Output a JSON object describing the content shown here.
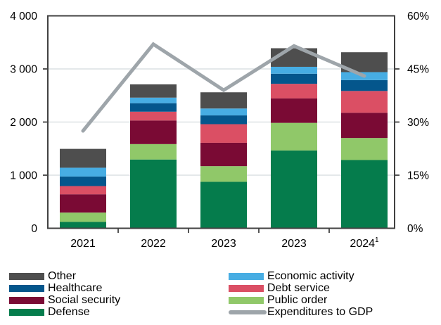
{
  "chart_data": {
    "type": "bar",
    "subtype": "stacked-bars-with-line-overlay",
    "title": "",
    "categories": [
      "2021",
      "2022",
      "2023",
      "2023",
      "2024"
    ],
    "x_footnote_marker": {
      "category_index": 4,
      "text": "1"
    },
    "left_axis": {
      "tick_labels": [
        "4 000",
        "3 000",
        "2 000",
        "1 000",
        "0"
      ],
      "tick_values": [
        4000,
        3000,
        2000,
        1000,
        0
      ],
      "min": 0,
      "max": 4000
    },
    "right_axis": {
      "tick_labels": [
        "60%",
        "45%",
        "30%",
        "15%",
        "0%"
      ],
      "tick_values": [
        60,
        45,
        30,
        15,
        0
      ],
      "min": 0,
      "max": 60
    },
    "gridline_values": [
      1000,
      2000,
      3000
    ],
    "right_tick_values": [
      15,
      30,
      45
    ],
    "series": [
      {
        "name": "Defense",
        "color": "#057C4C",
        "values": [
          120,
          1295,
          875,
          1465,
          1285
        ]
      },
      {
        "name": "Public order",
        "color": "#90C869",
        "values": [
          175,
          290,
          295,
          520,
          415
        ]
      },
      {
        "name": "Social security",
        "color": "#7A0A34",
        "values": [
          345,
          445,
          440,
          460,
          475
        ]
      },
      {
        "name": "Debt service",
        "color": "#DB4F64",
        "values": [
          155,
          165,
          350,
          275,
          410
        ]
      },
      {
        "name": "Healthcare",
        "color": "#04568C",
        "values": [
          180,
          160,
          165,
          190,
          205
        ]
      },
      {
        "name": "Economic activity",
        "color": "#47ADE3",
        "values": [
          165,
          105,
          130,
          130,
          150
        ]
      },
      {
        "name": "Other",
        "color": "#4E4E4E",
        "values": [
          355,
          250,
          305,
          350,
          375
        ]
      }
    ],
    "line_series": {
      "name": "Expenditures to GDP",
      "color": "#9EA5AA",
      "axis": "right",
      "values": [
        27.5,
        52,
        39,
        51.5,
        43
      ]
    },
    "legend_position": "bottom"
  },
  "legend": {
    "columns": [
      {
        "items": [
          {
            "label": "Other",
            "color": "#4E4E4E",
            "type": "box"
          },
          {
            "label": "Healthcare",
            "color": "#04568C",
            "type": "box"
          },
          {
            "label": "Social security",
            "color": "#7A0A34",
            "type": "box"
          },
          {
            "label": "Defense",
            "color": "#057C4C",
            "type": "box"
          }
        ]
      },
      {
        "items": [
          {
            "label": "Economic activity",
            "color": "#47ADE3",
            "type": "box"
          },
          {
            "label": "Debt service",
            "color": "#DB4F64",
            "type": "box"
          },
          {
            "label": "Public order",
            "color": "#90C869",
            "type": "box"
          },
          {
            "label": "Expenditures to GDP",
            "color": "#9EA5AA",
            "type": "line"
          }
        ]
      }
    ]
  },
  "style": {
    "grid_color": "#DCE1E4",
    "axis_color": "#414141",
    "text_color": "#000000",
    "background": "#FFFFFF"
  }
}
